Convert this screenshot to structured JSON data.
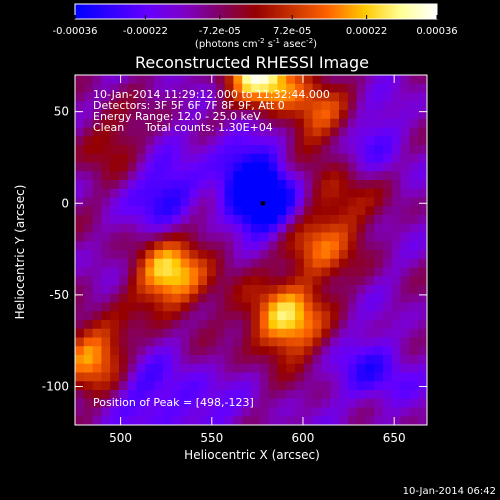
{
  "chart_data": {
    "type": "heatmap",
    "title": "Reconstructed RHESSI Image",
    "xlabel": "Heliocentric X (arcsec)",
    "ylabel": "Heliocentric Y (arcsec)",
    "xlim": [
      475,
      668
    ],
    "ylim": [
      -121,
      70
    ],
    "xticks": [
      500,
      550,
      600,
      650
    ],
    "yticks": [
      50,
      0,
      -50,
      -100
    ],
    "xtick_labels": [
      "500",
      "550",
      "600",
      "650"
    ],
    "ytick_labels": [
      "50",
      "0",
      "-50",
      "-100"
    ],
    "colorbar": {
      "ticks": [
        -0.00036,
        -0.00022,
        -7.2e-05,
        7.2e-05,
        0.00022,
        0.00036
      ],
      "tick_labels": [
        "-0.00036",
        "-0.00022",
        "-7.2e-05",
        "7.2e-05",
        "0.00022",
        "0.00036"
      ],
      "units": "(photons cm",
      "units_sup1": "-2",
      "units_mid": " s",
      "units_sup2": "-1",
      "units_mid2": " asec",
      "units_sup3": "-2",
      "units_end": ")",
      "colors": [
        "#0000ff",
        "#3200ff",
        "#6400ff",
        "#7d00c8",
        "#820064",
        "#960000",
        "#c83200",
        "#ff6400",
        "#ffc800",
        "#ffff96",
        "#ffffff"
      ]
    },
    "value_range": [
      -0.00036,
      0.00036
    ],
    "grid_size": [
      40,
      40
    ],
    "cell_value_unit": "map intensity",
    "peak": {
      "x": 498,
      "y": -123
    },
    "hotspots": [
      {
        "x": 578,
        "y": 69,
        "value": 0.00036
      },
      {
        "x": 590,
        "y": -64,
        "value": 0.00034
      },
      {
        "x": 528,
        "y": -40,
        "value": 0.00032
      },
      {
        "x": 606,
        "y": -24,
        "value": 0.00022
      },
      {
        "x": 608,
        "y": 48,
        "value": 0.00018
      },
      {
        "x": 620,
        "y": 2,
        "value": 0.00014
      },
      {
        "x": 484,
        "y": -83,
        "value": 0.00026
      },
      {
        "x": 493,
        "y": 35,
        "value": 0.0001
      },
      {
        "x": 550,
        "y": -14,
        "value": 8e-05
      }
    ],
    "coldspots": [
      {
        "x": 578,
        "y": 0,
        "value": -0.00036
      },
      {
        "x": 528,
        "y": 3,
        "value": -0.00018
      },
      {
        "x": 640,
        "y": -92,
        "value": -0.00014
      },
      {
        "x": 568,
        "y": 30,
        "value": -0.00012
      },
      {
        "x": 512,
        "y": -102,
        "value": -0.0001
      },
      {
        "x": 640,
        "y": 35,
        "value": -0.0001
      },
      {
        "x": 540,
        "y": -112,
        "value": -0.0001
      }
    ],
    "annotations": {
      "time_range": "10-Jan-2014 11:29:12.000 to 11:32:44.000",
      "detectors": "Detectors: 3F 5F 6F 7F 8F 9F, Att 0",
      "energy_range": "Energy Range: 12.0 - 25.0 keV",
      "clean_label": "Clean",
      "total_counts": "Total counts: 1.30E+04",
      "peak_position": "Position of Peak = [498,-123]",
      "timestamp": "10-Jan-2014 06:42"
    }
  }
}
